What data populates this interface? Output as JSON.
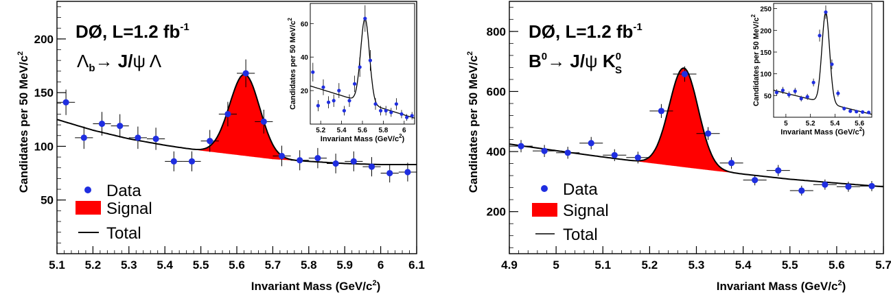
{
  "chart_data": [
    {
      "type": "scatter",
      "title": "DØ, L=1.2 fb",
      "title_sup": "-1",
      "process": "Λb → J/ψ Λ",
      "xlabel": "Invariant Mass (GeV/c",
      "xlabel_sup": "2",
      "xlabel_end": ")",
      "ylabel": "Candidates per 50 MeV/c",
      "ylabel_sup": "2",
      "xlim": [
        5.1,
        6.1
      ],
      "ylim": [
        0,
        235
      ],
      "xticks": [
        "5.1",
        "5.2",
        "5.3",
        "5.4",
        "5.5",
        "5.6",
        "5.7",
        "5.8",
        "5.9",
        "6",
        "6.1"
      ],
      "yticks": [
        "50",
        "100",
        "150",
        "200"
      ],
      "data": {
        "x": [
          5.125,
          5.175,
          5.225,
          5.275,
          5.325,
          5.375,
          5.425,
          5.475,
          5.525,
          5.575,
          5.625,
          5.675,
          5.725,
          5.775,
          5.825,
          5.875,
          5.925,
          5.975,
          6.025,
          6.075
        ],
        "y": [
          141,
          108,
          121,
          119,
          108,
          107,
          86,
          86,
          105,
          130,
          168,
          123,
          91,
          87,
          89,
          84,
          86,
          81,
          75,
          76
        ]
      },
      "fit": {
        "background": {
          "x": [
            5.1,
            5.2,
            5.3,
            5.4,
            5.5,
            5.6,
            5.7,
            5.8,
            5.9,
            6.0,
            6.1
          ],
          "y": [
            125,
            115,
            107,
            101,
            96,
            92,
            88,
            86,
            84,
            83,
            83
          ]
        },
        "signal": {
          "mean": 5.622,
          "sigma": 0.042,
          "amplitude": 76
        }
      },
      "legend": [
        "Data",
        "Signal",
        "Total"
      ],
      "legend_position": "bottom-left",
      "colors": {
        "data": "#1f2ee0",
        "signal": "#ff0000",
        "fit": "#000000"
      },
      "inset": {
        "xlabel": "Invariant Mass (GeV/c",
        "xlabel_sup": "2",
        "xlabel_end": ")",
        "ylabel": "Candidates per 50 MeV/c",
        "ylabel_sup": "2",
        "xlim": [
          5.1,
          6.1
        ],
        "ylim": [
          0,
          72
        ],
        "xticks": [
          "5.2",
          "5.4",
          "5.6",
          "5.8",
          "6"
        ],
        "yticks": [
          "20",
          "40",
          "60"
        ],
        "data": {
          "x": [
            5.125,
            5.175,
            5.225,
            5.275,
            5.325,
            5.375,
            5.425,
            5.475,
            5.525,
            5.575,
            5.625,
            5.675,
            5.725,
            5.775,
            5.825,
            5.875,
            5.925,
            5.975,
            6.025,
            6.075
          ],
          "y": [
            31,
            11,
            22,
            13,
            14,
            20,
            8,
            14,
            24,
            34,
            63,
            38,
            12,
            8,
            8,
            7,
            12,
            6,
            4,
            5
          ]
        }
      }
    },
    {
      "type": "scatter",
      "title": "DØ, L=1.2 fb",
      "title_sup": "-1",
      "process": "B0 → J/ψ KS0",
      "xlabel": "Invariant Mass (GeV/c",
      "xlabel_sup": "2",
      "xlabel_end": ")",
      "ylabel": "Candidates per 50 MeV/c",
      "ylabel_sup": "2",
      "xlim": [
        4.9,
        5.7
      ],
      "ylim": [
        60,
        900
      ],
      "xticks": [
        "4.9",
        "5",
        "5.1",
        "5.2",
        "5.3",
        "5.4",
        "5.5",
        "5.6",
        "5.7"
      ],
      "yticks": [
        "200",
        "400",
        "600",
        "800"
      ],
      "data": {
        "x": [
          4.925,
          4.975,
          5.025,
          5.075,
          5.125,
          5.175,
          5.225,
          5.275,
          5.325,
          5.375,
          5.425,
          5.475,
          5.525,
          5.575,
          5.625,
          5.675
        ],
        "y": [
          418,
          402,
          396,
          428,
          388,
          380,
          535,
          658,
          460,
          362,
          305,
          337,
          270,
          290,
          283,
          285
        ]
      },
      "fit": {
        "background": {
          "x": [
            4.9,
            5.0,
            5.1,
            5.2,
            5.3,
            5.4,
            5.5,
            5.6,
            5.7
          ],
          "y": [
            425,
            403,
            382,
            362,
            343,
            325,
            308,
            295,
            283
          ]
        },
        "signal": {
          "mean": 5.273,
          "sigma": 0.031,
          "amplitude": 330
        }
      },
      "legend": [
        "Data",
        "Signal",
        "Total"
      ],
      "legend_position": "bottom-left",
      "colors": {
        "data": "#1f2ee0",
        "signal": "#ff0000",
        "fit": "#000000"
      },
      "inset": {
        "xlabel": "Invariant Mass (GeV/c",
        "xlabel_sup": "2",
        "xlabel_end": ")",
        "ylabel": "Candidates per 50 MeV/c",
        "ylabel_sup": "2",
        "xlim": [
          4.9,
          5.7
        ],
        "ylim": [
          0,
          262
        ],
        "xticks": [
          "5",
          "5.2",
          "5.4",
          "5.6"
        ],
        "yticks": [
          "50",
          "100",
          "150",
          "200",
          "250"
        ],
        "data": {
          "x": [
            4.925,
            4.975,
            5.025,
            5.075,
            5.125,
            5.175,
            5.225,
            5.275,
            5.325,
            5.375,
            5.425,
            5.475,
            5.525,
            5.575,
            5.625,
            5.675
          ],
          "y": [
            57,
            62,
            52,
            60,
            43,
            47,
            80,
            188,
            242,
            122,
            55,
            20,
            14,
            13,
            12,
            11
          ]
        }
      }
    }
  ]
}
